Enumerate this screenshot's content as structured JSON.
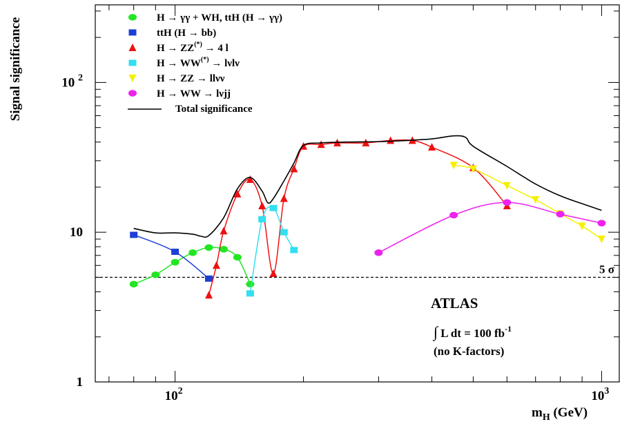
{
  "chart_data": {
    "type": "line",
    "title": "",
    "ylabel": "Signal significance",
    "xlabel": {
      "main": "m",
      "sub": "H",
      "unit": " (GeV)"
    },
    "xscale": "log",
    "yscale": "log",
    "xlim": [
      65,
      1100
    ],
    "ylim": [
      1,
      330
    ],
    "x_ticks": [
      {
        "value": 100,
        "base": "10",
        "exp": "2"
      },
      {
        "value": 1000,
        "base": "10",
        "exp": "3"
      }
    ],
    "y_ticks": [
      {
        "value": 1,
        "label": "1"
      },
      {
        "value": 10,
        "label": "10"
      },
      {
        "value": 100,
        "base": "10",
        "exp": "2"
      }
    ],
    "legend_position": "top-left",
    "legend": [
      {
        "parts": [
          [
            "H ",
            ""
          ],
          [
            "→",
            ""
          ],
          [
            " γγ + WH, ttH (H ",
            ""
          ],
          [
            "→",
            ""
          ],
          [
            " γγ)",
            ""
          ]
        ]
      },
      {
        "parts": [
          [
            "ttH (H ",
            ""
          ],
          [
            "→",
            ""
          ],
          [
            " bb)",
            ""
          ]
        ]
      },
      {
        "parts": [
          [
            "H ",
            ""
          ],
          [
            "→",
            ""
          ],
          [
            " ZZ",
            ""
          ],
          [
            "(*)",
            "sup"
          ],
          [
            " → 4 l",
            ""
          ]
        ]
      },
      {
        "parts": [
          [
            "H ",
            ""
          ],
          [
            "→",
            ""
          ],
          [
            " WW",
            ""
          ],
          [
            "(*)",
            "sup"
          ],
          [
            " → lνlν",
            ""
          ]
        ]
      },
      {
        "parts": [
          [
            "H ",
            ""
          ],
          [
            "→",
            ""
          ],
          [
            " ZZ ",
            ""
          ],
          [
            "→",
            ""
          ],
          [
            " llνν",
            ""
          ]
        ]
      },
      {
        "parts": [
          [
            "H ",
            ""
          ],
          [
            "→",
            ""
          ],
          [
            " WW ",
            ""
          ],
          [
            "→",
            ""
          ],
          [
            " lνjj",
            ""
          ]
        ]
      },
      {
        "parts": [
          [
            "Total significance",
            ""
          ]
        ]
      }
    ],
    "series": [
      {
        "marker": "circle",
        "color": "#22e622",
        "x": [
          80,
          90,
          100,
          110,
          120,
          130,
          140,
          150
        ],
        "y": [
          4.5,
          5.2,
          6.3,
          7.3,
          7.9,
          7.7,
          6.8,
          4.5
        ]
      },
      {
        "marker": "square",
        "color": "#1e3fd6",
        "x": [
          80,
          100,
          120
        ],
        "y": [
          9.6,
          7.4,
          4.9
        ]
      },
      {
        "marker": "triangle-up",
        "color": "#ee1111",
        "x": [
          120,
          125,
          130,
          140,
          150,
          160,
          170,
          180,
          190,
          200,
          220,
          240,
          280,
          320,
          360,
          400,
          500,
          600
        ],
        "y": [
          3.8,
          6.0,
          10.2,
          18.0,
          22.5,
          15.0,
          5.3,
          16.8,
          26.5,
          37.5,
          38.5,
          39.5,
          39.5,
          41.0,
          41.0,
          37.0,
          27.0,
          15.0
        ]
      },
      {
        "marker": "square",
        "color": "#33dff0",
        "x": [
          150,
          160,
          170,
          180,
          190
        ],
        "y": [
          3.9,
          12.2,
          14.5,
          10.0,
          7.6
        ]
      },
      {
        "marker": "triangle-down",
        "color": "#f5f000",
        "x": [
          450,
          500,
          600,
          700,
          800,
          900,
          1000
        ],
        "y": [
          28.0,
          26.5,
          20.5,
          16.5,
          13.3,
          11.0,
          9.0
        ]
      },
      {
        "marker": "circle",
        "color": "#ee22ee",
        "x": [
          300,
          450,
          600,
          800,
          1000
        ],
        "y": [
          7.3,
          13.0,
          15.8,
          13.2,
          11.5
        ]
      },
      {
        "marker": "none",
        "color": "#000000",
        "x": [
          80,
          90,
          100,
          110,
          115,
          120,
          130,
          140,
          150,
          160,
          165,
          170,
          180,
          190,
          200,
          220,
          250,
          300,
          350,
          400,
          450,
          480,
          500,
          600,
          700,
          800,
          900,
          1000
        ],
        "y": [
          10.6,
          9.9,
          9.9,
          9.7,
          9.4,
          9.5,
          12.5,
          19.5,
          23.2,
          18.8,
          15.7,
          16.8,
          22.0,
          29.0,
          38.0,
          39.5,
          40.0,
          40.3,
          41.0,
          42.0,
          44.0,
          43.0,
          37.5,
          27.5,
          21.0,
          17.5,
          15.5,
          14.0
        ]
      }
    ],
    "reference_line": {
      "y": 5,
      "style": "dashed",
      "label": "5 σ"
    },
    "annotations": {
      "experiment": "ATLAS",
      "lumi": {
        "integral": "∫",
        "text": "L dt = 100 fb",
        "exp": "-1"
      },
      "note": "(no K-factors)"
    }
  }
}
